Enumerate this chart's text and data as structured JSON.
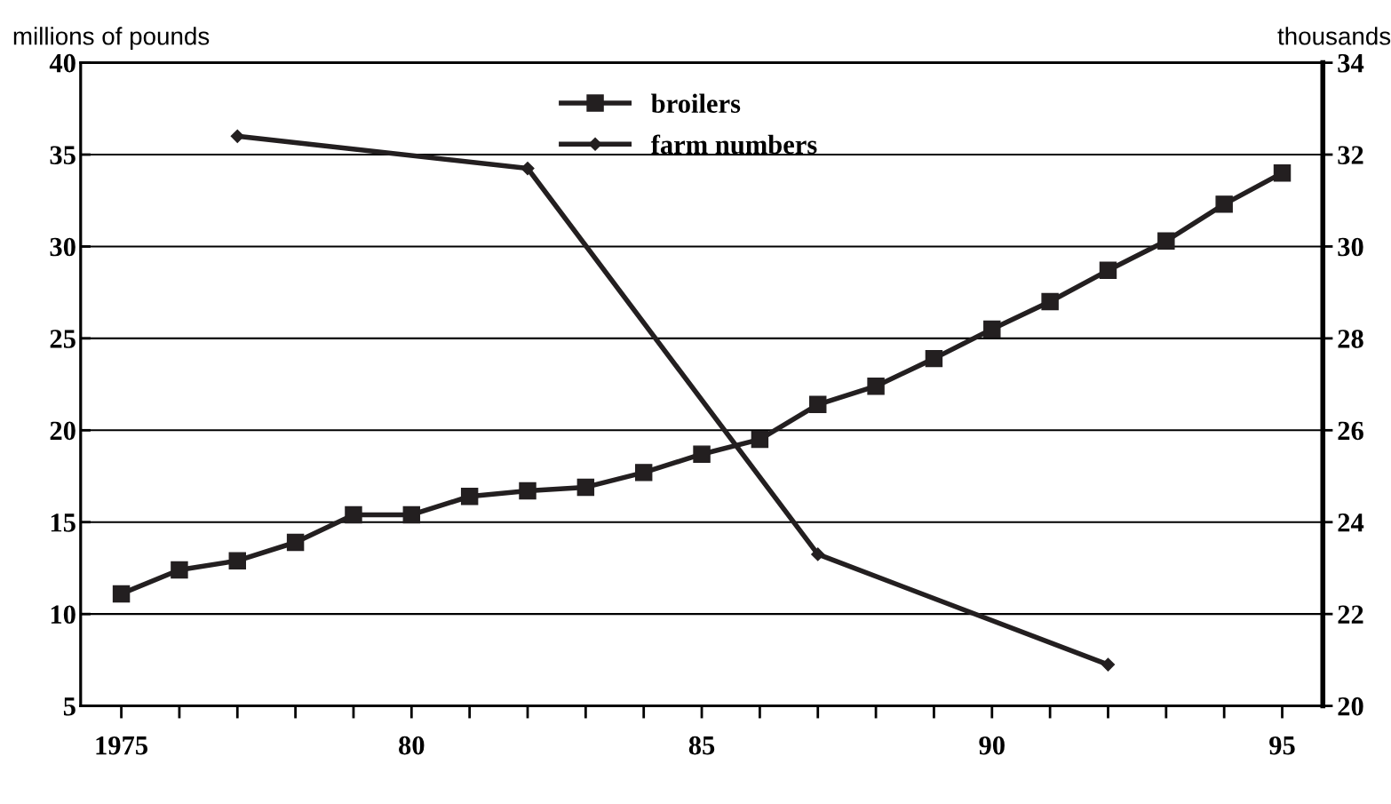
{
  "chart_data": {
    "type": "line",
    "ylabel": "millions of pounds",
    "y2label": "thousands",
    "xlim": [
      1974.3,
      1995.7
    ],
    "xticks": [
      {
        "value": 1975,
        "label": "1975"
      },
      {
        "value": 1976,
        "label": null
      },
      {
        "value": 1977,
        "label": null
      },
      {
        "value": 1978,
        "label": null
      },
      {
        "value": 1979,
        "label": null
      },
      {
        "value": 1980,
        "label": "80"
      },
      {
        "value": 1981,
        "label": null
      },
      {
        "value": 1982,
        "label": null
      },
      {
        "value": 1983,
        "label": null
      },
      {
        "value": 1984,
        "label": null
      },
      {
        "value": 1985,
        "label": "85"
      },
      {
        "value": 1986,
        "label": null
      },
      {
        "value": 1987,
        "label": null
      },
      {
        "value": 1988,
        "label": null
      },
      {
        "value": 1989,
        "label": null
      },
      {
        "value": 1990,
        "label": "90"
      },
      {
        "value": 1991,
        "label": null
      },
      {
        "value": 1992,
        "label": null
      },
      {
        "value": 1993,
        "label": null
      },
      {
        "value": 1994,
        "label": null
      },
      {
        "value": 1995,
        "label": "95"
      }
    ],
    "ylim": [
      5,
      40
    ],
    "yticks": [
      5,
      10,
      15,
      20,
      25,
      30,
      35,
      40
    ],
    "y2lim": [
      20,
      34
    ],
    "y2ticks": [
      20,
      22,
      24,
      26,
      28,
      30,
      32,
      34
    ],
    "grid": "y",
    "legend": "top",
    "series": [
      {
        "name": "broilers",
        "color": "#231f20",
        "marker": "square",
        "x": [
          1975,
          1976,
          1977,
          1978,
          1979,
          1980,
          1981,
          1982,
          1983,
          1984,
          1985,
          1986,
          1987,
          1988,
          1989,
          1990,
          1991,
          1992,
          1993,
          1994,
          1995
        ],
        "values": [
          11.1,
          12.4,
          12.9,
          13.9,
          15.4,
          15.4,
          16.4,
          16.7,
          16.9,
          17.7,
          18.7,
          19.5,
          21.4,
          22.4,
          23.9,
          25.5,
          27.0,
          28.7,
          30.3,
          32.3,
          34.0
        ]
      },
      {
        "name": "farm numbers",
        "color": "#231f20",
        "marker": "diamond",
        "axis": "y2",
        "x": [
          1977,
          1982,
          1987,
          1992
        ],
        "values": [
          32.4,
          31.7,
          23.3,
          20.9
        ]
      }
    ]
  }
}
